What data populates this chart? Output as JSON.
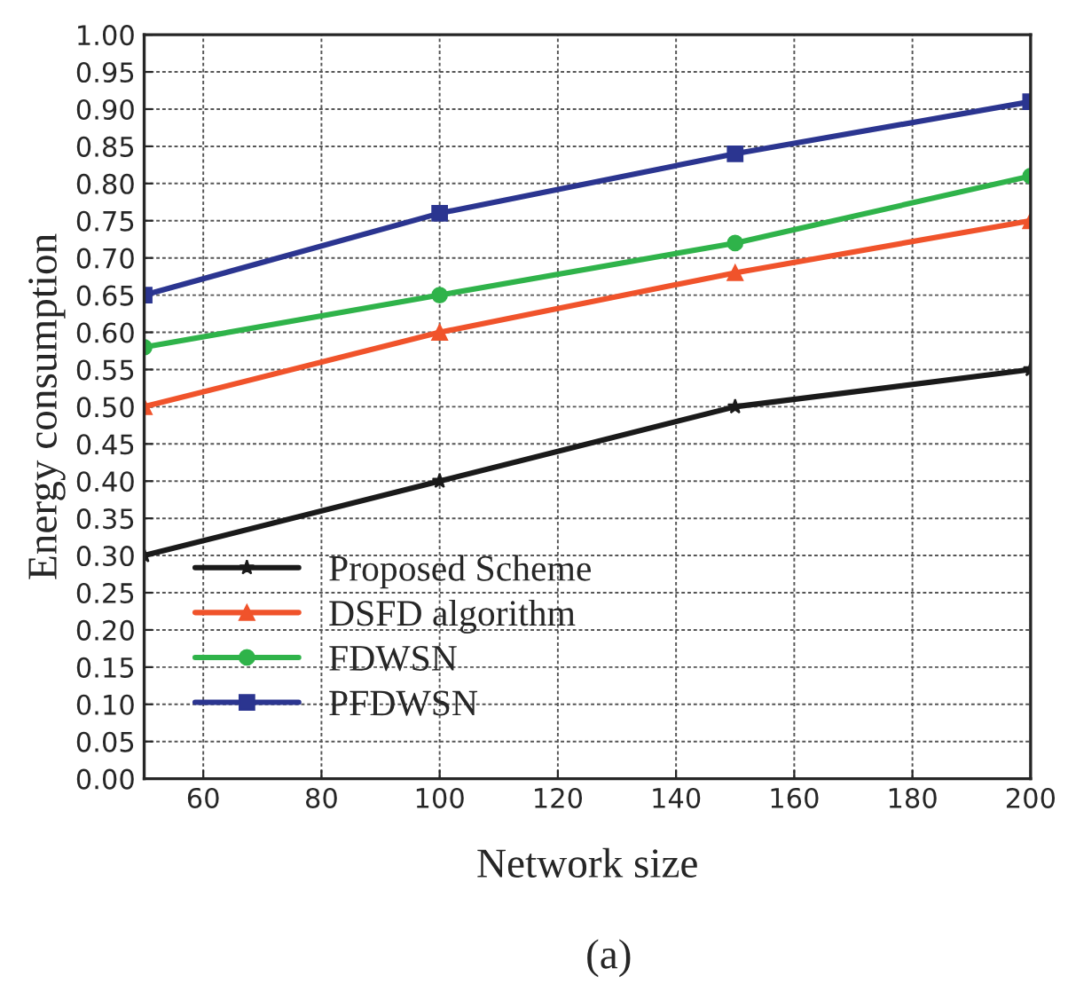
{
  "chart_data": {
    "type": "line",
    "xlabel": "Network size",
    "ylabel": "Energy consumption",
    "x": [
      50,
      100,
      150,
      200
    ],
    "series": [
      {
        "name": "Proposed Scheme",
        "color": "#1a1a1a",
        "marker": "star",
        "values": [
          0.3,
          0.4,
          0.5,
          0.55
        ]
      },
      {
        "name": "DSFD algorithm",
        "color": "#f0532b",
        "marker": "triangle",
        "values": [
          0.5,
          0.6,
          0.68,
          0.75
        ]
      },
      {
        "name": "FDWSN",
        "color": "#2fb34a",
        "marker": "circle",
        "values": [
          0.58,
          0.65,
          0.72,
          0.81
        ]
      },
      {
        "name": "PFDWSN",
        "color": "#2b3590",
        "marker": "square",
        "values": [
          0.65,
          0.76,
          0.84,
          0.91
        ]
      }
    ],
    "xlim": [
      50,
      200
    ],
    "xticks": [
      60,
      80,
      100,
      120,
      140,
      160,
      180,
      200
    ],
    "ylim": [
      0,
      1.0
    ],
    "yticks": [
      {
        "value": 0,
        "label": "0.00"
      },
      {
        "value": 0.05,
        "label": "0.05"
      },
      {
        "value": 0.1,
        "label": "0.10"
      },
      {
        "value": 0.15,
        "label": "0.15"
      },
      {
        "value": 0.2,
        "label": "0.20"
      },
      {
        "value": 0.25,
        "label": "0.25"
      },
      {
        "value": 0.3,
        "label": "0.30"
      },
      {
        "value": 0.35,
        "label": "0.35"
      },
      {
        "value": 0.4,
        "label": "0.40"
      },
      {
        "value": 0.45,
        "label": "0.45"
      },
      {
        "value": 0.5,
        "label": "0.50"
      },
      {
        "value": 0.55,
        "label": "0.55"
      },
      {
        "value": 0.6,
        "label": "0.60"
      },
      {
        "value": 0.65,
        "label": "0.65"
      },
      {
        "value": 0.7,
        "label": "0.70"
      },
      {
        "value": 0.75,
        "label": "0.75"
      },
      {
        "value": 0.8,
        "label": "0.80"
      },
      {
        "value": 0.85,
        "label": "0.85"
      },
      {
        "value": 0.9,
        "label": "0.90"
      },
      {
        "value": 0.95,
        "label": "0.95"
      },
      {
        "value": 1.0,
        "label": "1.00"
      }
    ],
    "grid": true,
    "legend": "bottom left",
    "line_style": "solid",
    "annotations": [
      "(a)"
    ]
  }
}
